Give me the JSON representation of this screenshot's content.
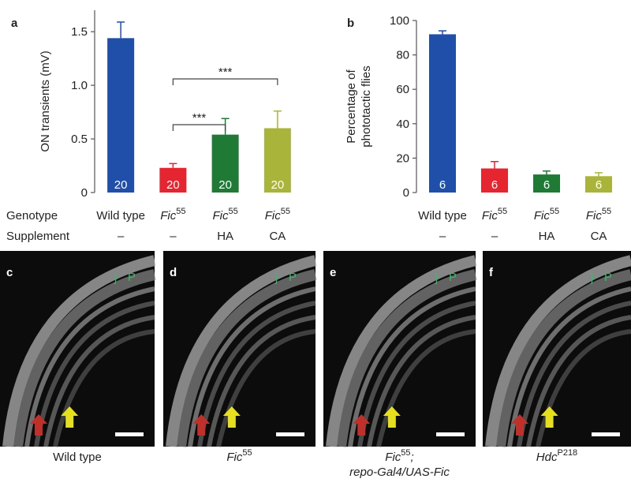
{
  "chart_data": [
    {
      "type": "bar",
      "panel": "a",
      "ylabel": [
        "ON transients (mV)"
      ],
      "categories": [
        "Wild type",
        "Fic",
        "Fic",
        "Fic"
      ],
      "category_superscripts": [
        null,
        "55",
        "55",
        "55"
      ],
      "supplements": [
        "–",
        "–",
        "HA",
        "CA"
      ],
      "values": [
        1.44,
        0.23,
        0.54,
        0.6
      ],
      "error": [
        0.15,
        0.04,
        0.15,
        0.16
      ],
      "n_labels": [
        20,
        20,
        20,
        20
      ],
      "colors": [
        "#1f4fa8",
        "#e52530",
        "#1e7a35",
        "#a9b43b"
      ],
      "ylim": [
        0,
        1.7
      ],
      "yticks": [
        0,
        0.5,
        {
          "value": 1,
          "label": "1.0"
        },
        1.5
      ],
      "significance": [
        {
          "from": 1,
          "to": 2,
          "label": "***"
        },
        {
          "from": 1,
          "to": 3,
          "label": "***"
        }
      ]
    },
    {
      "type": "bar",
      "panel": "b",
      "ylabel": [
        "Percentage of",
        "phototactic flies"
      ],
      "categories": [
        "Wild type",
        "Fic",
        "Fic",
        "Fic"
      ],
      "category_superscripts": [
        null,
        "55",
        "55",
        "55"
      ],
      "supplements": [
        "–",
        "–",
        "HA",
        "CA"
      ],
      "values": [
        92,
        14,
        10.5,
        9.5
      ],
      "error": [
        2,
        4,
        2,
        2
      ],
      "n_labels": [
        6,
        6,
        6,
        6
      ],
      "colors": [
        "#1f4fa8",
        "#e52530",
        "#1e7a35",
        "#a9b43b"
      ],
      "ylim": [
        0,
        100
      ],
      "yticks": [
        0,
        20,
        40,
        60,
        80,
        100
      ]
    }
  ],
  "row_labels": [
    "Genotype",
    "Supplement"
  ],
  "images": [
    {
      "label": "c",
      "region": "P",
      "caption": [
        [
          {
            "text": "Wild type",
            "style": "normal"
          }
        ]
      ]
    },
    {
      "label": "d",
      "region": "P",
      "caption": [
        [
          {
            "text": "Fic",
            "style": "italic"
          },
          {
            "text": "55",
            "style": "sup"
          }
        ]
      ]
    },
    {
      "label": "e",
      "region": "P",
      "caption": [
        [
          {
            "text": "Fic",
            "style": "italic"
          },
          {
            "text": "55",
            "style": "sup"
          },
          {
            "text": ";",
            "style": "italic"
          }
        ],
        [
          {
            "text": "repo-Gal4/UAS-Fic",
            "style": "italic"
          }
        ]
      ]
    },
    {
      "label": "f",
      "region": "P",
      "caption": [
        [
          {
            "text": "Hdc",
            "style": "italic"
          },
          {
            "text": "P218",
            "style": "sup"
          }
        ]
      ]
    }
  ]
}
